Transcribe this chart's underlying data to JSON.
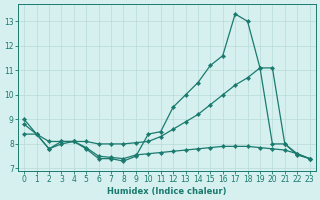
{
  "xlabel": "Humidex (Indice chaleur)",
  "bg_color": "#d6f0ef",
  "grid_color": "#b8dbd9",
  "line_color": "#1a7a6e",
  "line1_x": [
    0,
    1,
    2,
    3,
    4,
    5,
    6,
    7,
    8,
    9,
    10,
    11,
    12,
    13,
    14,
    15,
    16,
    17,
    18,
    19,
    20,
    21,
    22,
    23
  ],
  "line1_y": [
    9.0,
    8.4,
    7.8,
    8.1,
    8.1,
    7.8,
    7.4,
    7.4,
    7.3,
    7.5,
    8.4,
    8.5,
    9.5,
    10.0,
    10.5,
    11.2,
    11.6,
    13.3,
    13.0,
    11.1,
    8.0,
    8.0,
    7.55,
    7.4
  ],
  "line2_x": [
    0,
    1,
    2,
    3,
    4,
    5,
    6,
    7,
    8,
    9,
    10,
    11,
    12,
    13,
    14,
    15,
    16,
    17,
    18,
    19,
    20,
    21,
    22,
    23
  ],
  "line2_y": [
    8.4,
    8.4,
    8.1,
    8.1,
    8.1,
    8.1,
    8.0,
    8.0,
    8.0,
    8.05,
    8.1,
    8.3,
    8.6,
    8.9,
    9.2,
    9.6,
    10.0,
    10.4,
    10.7,
    11.1,
    11.1,
    8.0,
    7.6,
    7.4
  ],
  "line3_x": [
    0,
    1,
    2,
    3,
    4,
    5,
    6,
    7,
    8,
    9,
    10,
    11,
    12,
    13,
    14,
    15,
    16,
    17,
    18,
    19,
    20,
    21,
    22,
    23
  ],
  "line3_y": [
    8.8,
    8.4,
    7.8,
    8.0,
    8.1,
    7.85,
    7.5,
    7.45,
    7.4,
    7.55,
    7.6,
    7.65,
    7.7,
    7.75,
    7.8,
    7.85,
    7.9,
    7.9,
    7.9,
    7.85,
    7.8,
    7.75,
    7.6,
    7.4
  ],
  "ylim": [
    6.9,
    13.7
  ],
  "xlim": [
    -0.5,
    23.5
  ],
  "yticks": [
    7,
    8,
    9,
    10,
    11,
    12,
    13
  ],
  "xticks": [
    0,
    1,
    2,
    3,
    4,
    5,
    6,
    7,
    8,
    9,
    10,
    11,
    12,
    13,
    14,
    15,
    16,
    17,
    18,
    19,
    20,
    21,
    22,
    23
  ]
}
